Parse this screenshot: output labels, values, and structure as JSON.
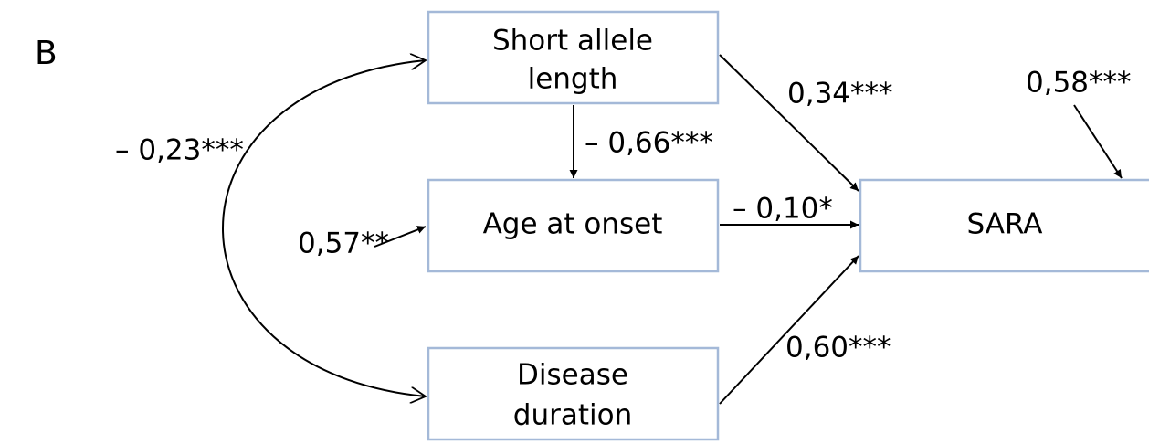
{
  "panel_label": "B",
  "nodes": [
    {
      "lines": [
        "Short allele",
        "length"
      ]
    },
    {
      "lines": [
        "Age at onset"
      ]
    },
    {
      "lines": [
        "Disease",
        "duration"
      ]
    },
    {
      "lines": [
        "SARA"
      ]
    }
  ],
  "paths": [
    {
      "label": "0,34***"
    },
    {
      "label": "– 0,66***"
    },
    {
      "label": "– 0,10*"
    },
    {
      "label": "0,60***"
    },
    {
      "label": "– 0,23***"
    }
  ],
  "residuals": [
    {
      "label": "0,57**"
    },
    {
      "label": "0,58***"
    }
  ]
}
